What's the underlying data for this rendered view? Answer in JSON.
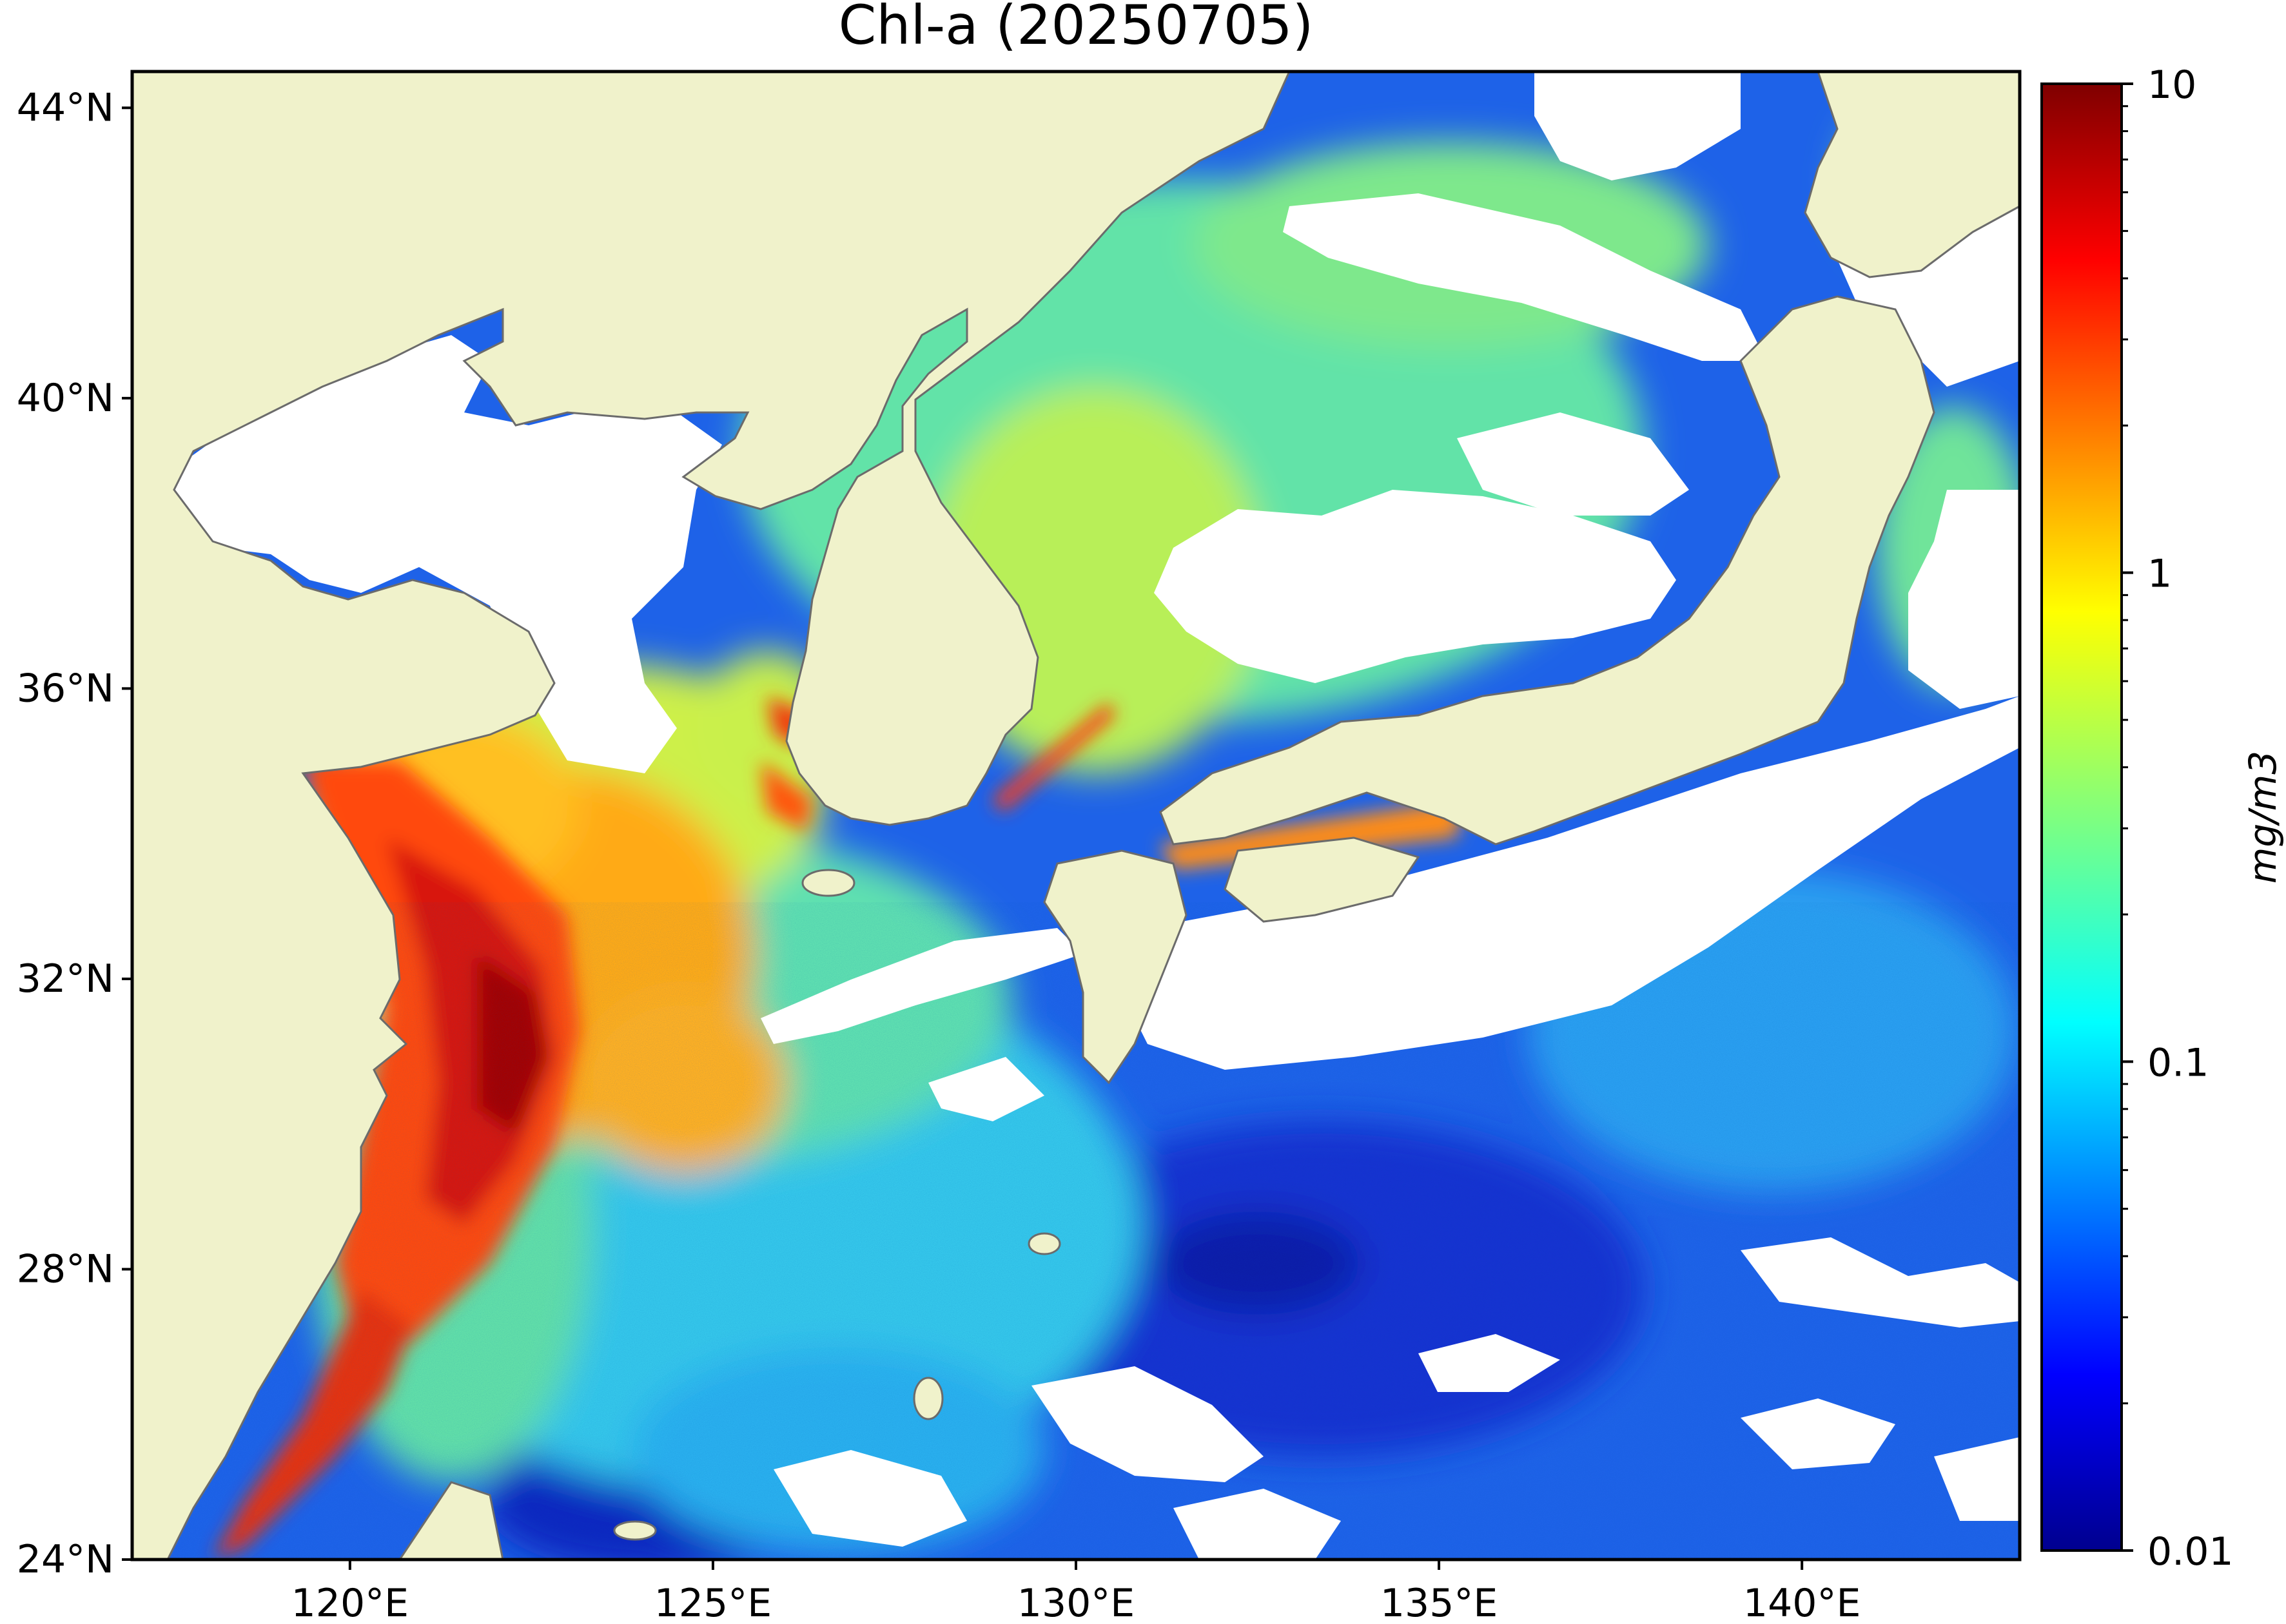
{
  "chart_data": {
    "type": "map",
    "title": "Chl-a (20250705)",
    "variable": "Chl-a",
    "date": "20250705",
    "lon_range": [
      117,
      143
    ],
    "lat_range": [
      24,
      44.5
    ],
    "x_ticks": [
      {
        "value": 120,
        "label": "120°E"
      },
      {
        "value": 125,
        "label": "125°E"
      },
      {
        "value": 130,
        "label": "130°E"
      },
      {
        "value": 135,
        "label": "135°E"
      },
      {
        "value": 140,
        "label": "140°E"
      }
    ],
    "y_ticks": [
      {
        "value": 44,
        "label": "44°N"
      },
      {
        "value": 40,
        "label": "40°N"
      },
      {
        "value": 36,
        "label": "36°N"
      },
      {
        "value": 32,
        "label": "32°N"
      },
      {
        "value": 28,
        "label": "28°N"
      },
      {
        "value": 24,
        "label": "24°N"
      }
    ],
    "colorbar": {
      "label": "mg/m3",
      "scale": "log",
      "range": [
        0.01,
        10
      ],
      "colormap": "jet",
      "ticks": [
        {
          "value": 10,
          "label": "10"
        },
        {
          "value": 1,
          "label": "1"
        },
        {
          "value": 0.1,
          "label": "0.1"
        },
        {
          "value": 0.01,
          "label": "0.01"
        }
      ]
    },
    "colors": {
      "land": "#f0f2cb",
      "coastline": "#6b6b6b",
      "no_data": "#ffffff",
      "low": "#1a3fd6",
      "mid_low": "#30c8e8",
      "mid": "#78e88a",
      "mid_high": "#f2f022",
      "high": "#ff5a10",
      "very_high": "#b80000"
    }
  }
}
